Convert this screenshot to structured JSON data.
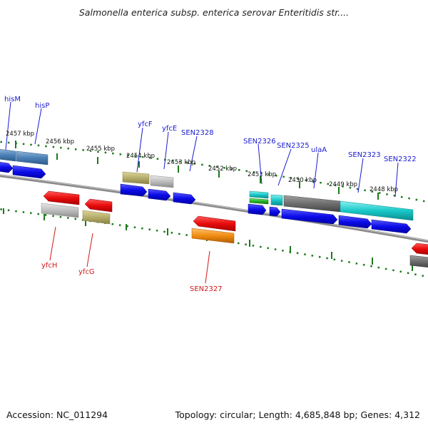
{
  "header": {
    "title": "Salmonella enterica subsp. enterica serovar Enteritidis str...."
  },
  "footer": {
    "accession": "Accession: NC_011294",
    "summary": "Topology: circular; Length: 4,685,848 bp; Genes: 4,312"
  },
  "ticks": [
    "2457 kbp",
    "2456 kbp",
    "2455 kbp",
    "2454 kbp",
    "2453 kbp",
    "2452 kbp",
    "2451 kbp",
    "2450 kbp",
    "2449 kbp",
    "2448 kbp"
  ],
  "genes_top": [
    "hisM",
    "hisP",
    "yfcF",
    "yfcE",
    "SEN2328",
    "SEN2326",
    "SEN2325",
    "ulaA",
    "SEN2323",
    "SEN2322"
  ],
  "genes_bottom": [
    "yfcH",
    "yfcG",
    "SEN2327"
  ],
  "colors": {
    "cds": "#1010e8",
    "cds_reverse": "#e81010",
    "steelblue": "#4a7fb5",
    "khaki": "#b5ad6a",
    "silver": "#bdbdbd",
    "darkgray": "#6e6e6e",
    "cyan": "#18c8c8",
    "green": "#28b428",
    "orange": "#f08c10",
    "backbone": "#808080",
    "ruler": "#1c7a1c"
  }
}
